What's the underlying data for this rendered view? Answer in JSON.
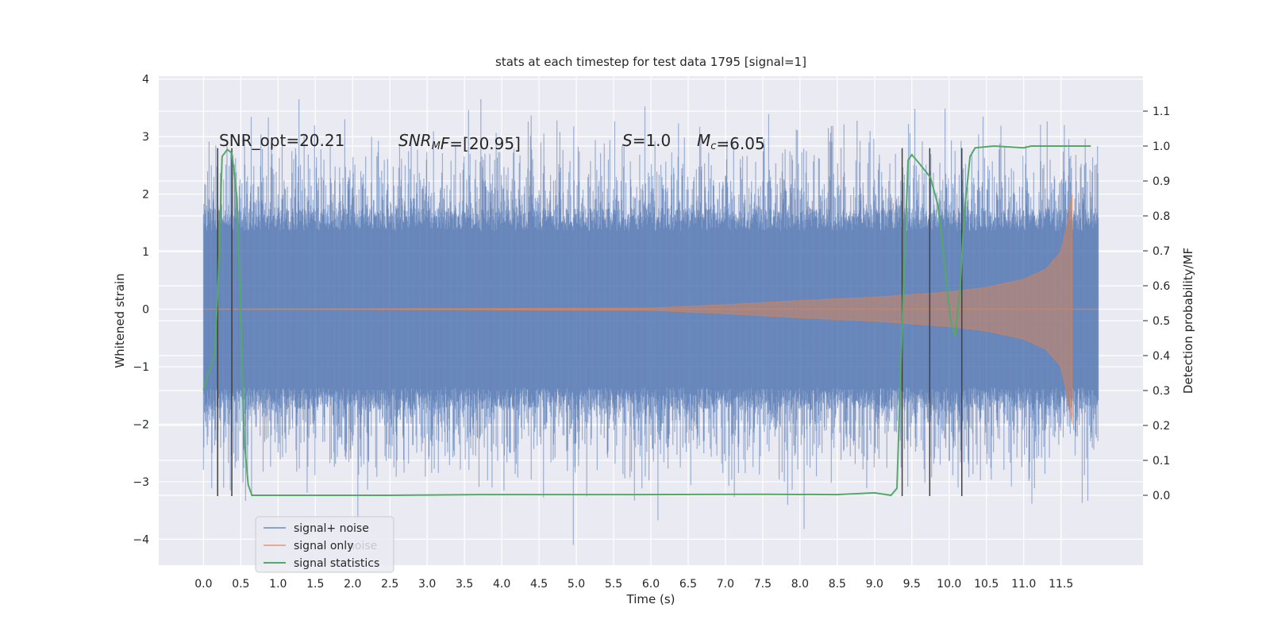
{
  "chart_data": {
    "type": "line",
    "title": "stats at each timestep for test data 1795 [signal=1]",
    "xlabel": "Time (s)",
    "ylabel": "Whitened strain",
    "y2label": "Detection probability/MF",
    "xlim": [
      -0.6,
      12.6
    ],
    "ylim": [
      -4.45,
      4.05
    ],
    "y2lim": [
      -0.2,
      1.2
    ],
    "x_ticks": [
      0.0,
      0.5,
      1.0,
      1.5,
      2.0,
      2.5,
      3.0,
      3.5,
      4.0,
      4.5,
      5.0,
      5.5,
      6.0,
      6.5,
      7.0,
      7.5,
      8.0,
      8.5,
      9.0,
      9.5,
      10.0,
      10.5,
      11.0,
      11.5
    ],
    "x_tick_labels": [
      "0.0",
      "0.5",
      "1.0",
      "1.5",
      "2.0",
      "2.5",
      "3.0",
      "3.5",
      "4.0",
      "4.5",
      "5.0",
      "5.5",
      "6.0",
      "6.5",
      "7.0",
      "7.5",
      "8.0",
      "8.5",
      "9.0",
      "9.5",
      "10.0",
      "10.5",
      "11.0",
      "11.5"
    ],
    "y_ticks": [
      -4,
      -3,
      -2,
      -1,
      0,
      1,
      2,
      3,
      4
    ],
    "y_tick_labels": [
      "−4",
      "−3",
      "−2",
      "−1",
      "0",
      "1",
      "2",
      "3",
      "4"
    ],
    "y2_ticks": [
      0.0,
      0.1,
      0.2,
      0.3,
      0.4,
      0.5,
      0.6,
      0.7,
      0.8,
      0.9,
      1.0,
      1.1
    ],
    "y2_tick_labels": [
      "0.0",
      "0.1",
      "0.2",
      "0.3",
      "0.4",
      "0.5",
      "0.6",
      "0.7",
      "0.8",
      "0.9",
      "1.0",
      "1.1"
    ],
    "grid": true,
    "legend_position": "lower-left",
    "colors": {
      "noise": "#4c72b0",
      "signal": "#dd8452",
      "stats": "#55a868",
      "vlines": "#404040",
      "background": "#eaeaf2"
    },
    "series": [
      {
        "name": "signal+ noise",
        "type": "strain",
        "x_range": [
          0.0,
          12.0
        ],
        "typical_amplitude": 1.6,
        "peak_max": 3.65,
        "peak_min": -4.1
      },
      {
        "name": "signal only",
        "type": "chirp",
        "x_range": [
          0.0,
          11.65
        ],
        "envelope": [
          {
            "x": 0.0,
            "y": 0.0
          },
          {
            "x": 6.0,
            "y": 0.02
          },
          {
            "x": 7.0,
            "y": 0.08
          },
          {
            "x": 8.0,
            "y": 0.15
          },
          {
            "x": 9.0,
            "y": 0.21
          },
          {
            "x": 10.0,
            "y": 0.3
          },
          {
            "x": 10.5,
            "y": 0.38
          },
          {
            "x": 11.0,
            "y": 0.52
          },
          {
            "x": 11.3,
            "y": 0.7
          },
          {
            "x": 11.5,
            "y": 1.0
          },
          {
            "x": 11.6,
            "y": 1.6
          },
          {
            "x": 11.65,
            "y": 2.0
          }
        ]
      },
      {
        "name": "signal statistics",
        "type": "line",
        "axis": "right",
        "points": [
          {
            "x": 0.0,
            "y": 0.3
          },
          {
            "x": 0.05,
            "y": 0.34
          },
          {
            "x": 0.1,
            "y": 0.37
          },
          {
            "x": 0.15,
            "y": 0.4
          },
          {
            "x": 0.2,
            "y": 0.63
          },
          {
            "x": 0.25,
            "y": 0.97
          },
          {
            "x": 0.32,
            "y": 0.99
          },
          {
            "x": 0.38,
            "y": 0.98
          },
          {
            "x": 0.45,
            "y": 0.85
          },
          {
            "x": 0.55,
            "y": 0.15
          },
          {
            "x": 0.6,
            "y": 0.03
          },
          {
            "x": 0.65,
            "y": 0.0
          },
          {
            "x": 2.5,
            "y": 0.0
          },
          {
            "x": 3.7,
            "y": 0.002
          },
          {
            "x": 5.8,
            "y": 0.002
          },
          {
            "x": 7.5,
            "y": 0.003
          },
          {
            "x": 8.5,
            "y": 0.002
          },
          {
            "x": 9.0,
            "y": 0.007
          },
          {
            "x": 9.22,
            "y": 0.0
          },
          {
            "x": 9.3,
            "y": 0.02
          },
          {
            "x": 9.38,
            "y": 0.55
          },
          {
            "x": 9.45,
            "y": 0.96
          },
          {
            "x": 9.5,
            "y": 0.975
          },
          {
            "x": 9.6,
            "y": 0.95
          },
          {
            "x": 9.75,
            "y": 0.91
          },
          {
            "x": 9.85,
            "y": 0.83
          },
          {
            "x": 9.95,
            "y": 0.64
          },
          {
            "x": 10.02,
            "y": 0.5
          },
          {
            "x": 10.08,
            "y": 0.455
          },
          {
            "x": 10.15,
            "y": 0.6
          },
          {
            "x": 10.2,
            "y": 0.8
          },
          {
            "x": 10.28,
            "y": 0.97
          },
          {
            "x": 10.35,
            "y": 0.995
          },
          {
            "x": 10.6,
            "y": 1.0
          },
          {
            "x": 11.0,
            "y": 0.995
          },
          {
            "x": 11.1,
            "y": 1.0
          },
          {
            "x": 11.9,
            "y": 1.0
          }
        ]
      }
    ],
    "vertical_lines": [
      {
        "x": 0.19,
        "y_top": 2.8,
        "y_bottom": -3.25
      },
      {
        "x": 0.38,
        "y_top": 2.8,
        "y_bottom": -3.25
      },
      {
        "x": 9.37,
        "y_top": 2.8,
        "y_bottom": -3.25
      },
      {
        "x": 9.74,
        "y_top": 2.8,
        "y_bottom": -3.25
      },
      {
        "x": 10.17,
        "y_top": 2.8,
        "y_bottom": -3.25
      }
    ],
    "annotations": [
      {
        "parts": [
          {
            "t": "SNR_opt=20.21",
            "i": false
          }
        ]
      },
      {
        "parts": [
          {
            "t": "SNR",
            "i": true
          },
          {
            "t": "M",
            "i": true,
            "sub": true
          },
          {
            "t": "F",
            "i": true
          },
          {
            "t": "=[20.95]",
            "i": false
          }
        ]
      },
      {
        "parts": [
          {
            "t": "S",
            "i": true
          },
          {
            "t": "=1.0",
            "i": false
          }
        ]
      },
      {
        "parts": [
          {
            "t": "M",
            "i": true
          },
          {
            "t": "c",
            "i": true,
            "sub": true
          },
          {
            "t": "=6.05",
            "i": false
          }
        ]
      }
    ],
    "legend_entries": [
      "signal+ noise",
      "signal only",
      "signal statistics"
    ],
    "legend_ghost_text": "noise"
  }
}
